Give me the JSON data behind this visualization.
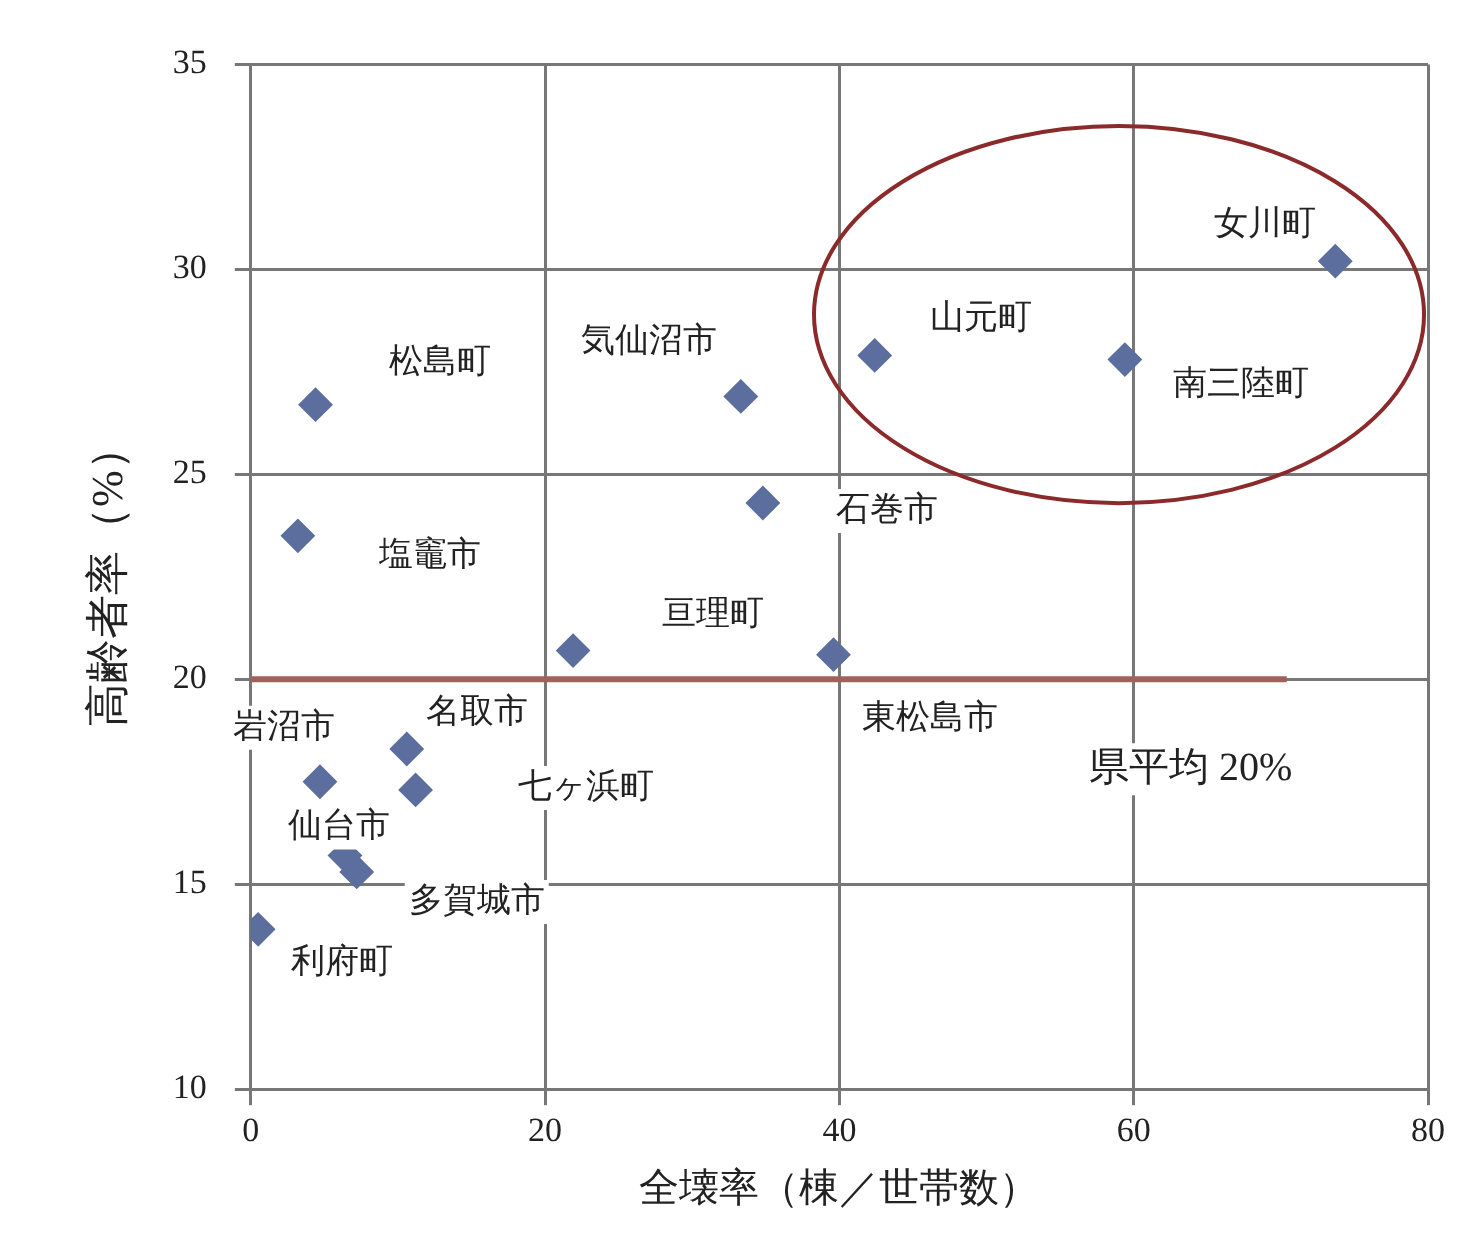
{
  "chart_data": {
    "type": "scatter",
    "xlabel": "全壊率（棟／世帯数）",
    "ylabel": "高齢者率（%）",
    "x": [
      4.4,
      3.2,
      33.3,
      34.8,
      21.9,
      39.6,
      42.4,
      59.4,
      73.7,
      4.7,
      10.6,
      11.2,
      6.4,
      7.2,
      0.5
    ],
    "values": [
      26.7,
      23.5,
      26.9,
      24.3,
      20.7,
      20.6,
      27.9,
      27.8,
      30.2,
      17.5,
      18.3,
      17.3,
      15.7,
      15.3,
      13.9
    ],
    "color": "#5b6e9e",
    "marker": "diamond",
    "xlim": [
      0,
      80
    ],
    "xticks": [
      0,
      20,
      40,
      60,
      80
    ],
    "ylim": [
      10,
      35
    ],
    "yticks": [
      10,
      15,
      20,
      25,
      30,
      35
    ],
    "grid": true,
    "ref_lines": [
      {
        "axis": "y",
        "value": 20,
        "label": "県平均 20%",
        "color": "#a0605c"
      }
    ],
    "annotations": [
      {
        "text": "松島町",
        "x": 4.4,
        "y": 26.7
      },
      {
        "text": "塩竈市",
        "x": 3.2,
        "y": 23.5
      },
      {
        "text": "気仙沼市",
        "x": 33.3,
        "y": 26.9
      },
      {
        "text": "石巻市",
        "x": 34.8,
        "y": 24.3
      },
      {
        "text": "亘理町",
        "x": 21.9,
        "y": 20.7
      },
      {
        "text": "東松島市",
        "x": 39.6,
        "y": 20.6
      },
      {
        "text": "山元町",
        "x": 42.4,
        "y": 27.9
      },
      {
        "text": "南三陸町",
        "x": 59.4,
        "y": 27.8
      },
      {
        "text": "女川町",
        "x": 73.7,
        "y": 30.2
      },
      {
        "text": "岩沼市",
        "x": 4.7,
        "y": 17.5
      },
      {
        "text": "名取市",
        "x": 10.6,
        "y": 18.3
      },
      {
        "text": "七ヶ浜町",
        "x": 11.2,
        "y": 17.3
      },
      {
        "text": "仙台市",
        "x": 6.4,
        "y": 15.7
      },
      {
        "text": "多賀城市",
        "x": 7.2,
        "y": 15.3
      },
      {
        "text": "利府町",
        "x": 0.5,
        "y": 13.9
      }
    ]
  }
}
